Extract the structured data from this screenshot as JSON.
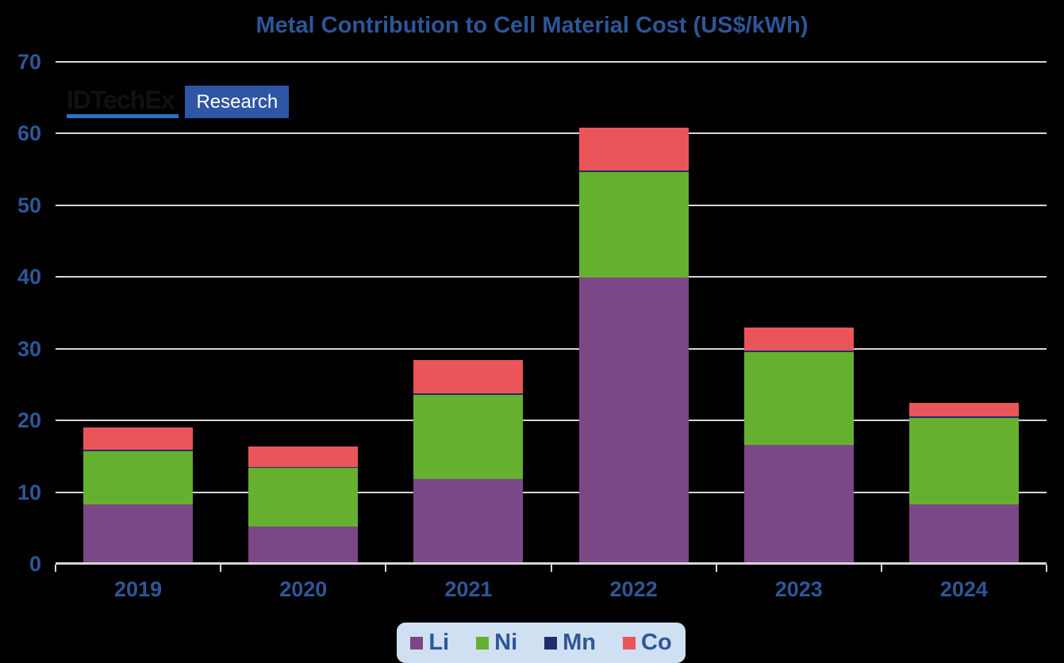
{
  "title": "Metal Contribution to Cell Material Cost (US$/kWh)",
  "logo": {
    "wordmark": "IDTechEx",
    "badge": "Research"
  },
  "chart_data": {
    "type": "bar",
    "stacked": true,
    "title": "Metal Contribution to Cell Material Cost (US$/kWh)",
    "categories": [
      "2019",
      "2020",
      "2021",
      "2022",
      "2023",
      "2024"
    ],
    "series": [
      {
        "name": "Li",
        "color": "#7C4787",
        "values": [
          8.1,
          5.0,
          11.6,
          39.7,
          16.3,
          8.1
        ]
      },
      {
        "name": "Ni",
        "color": "#66B02F",
        "values": [
          7.4,
          8.1,
          11.7,
          14.7,
          13.0,
          12.0
        ]
      },
      {
        "name": "Mn",
        "color": "#1F2D6E",
        "values": [
          0.2,
          0.2,
          0.2,
          0.2,
          0.2,
          0.2
        ]
      },
      {
        "name": "Co",
        "color": "#EA555A",
        "values": [
          3.1,
          2.8,
          4.7,
          5.9,
          3.2,
          1.9
        ]
      }
    ],
    "totals": [
      18.8,
      16.1,
      28.2,
      60.5,
      32.7,
      22.2
    ],
    "xlabel": "",
    "ylabel": "",
    "ylim": [
      0,
      70
    ],
    "yticks": [
      0,
      10,
      20,
      30,
      40,
      50,
      60,
      70
    ],
    "grid": true,
    "legend_position": "bottom"
  },
  "colors": {
    "background": "#000000",
    "text_blue": "#2E5697",
    "gridline": "#D6D6D6",
    "axis": "#D6D6D6",
    "legend_background": "#CFE0F2",
    "logo_text": "#111111",
    "logo_underline": "#2D6FC0",
    "badge_background": "#2E56A4",
    "badge_text": "#FFFFFF"
  }
}
